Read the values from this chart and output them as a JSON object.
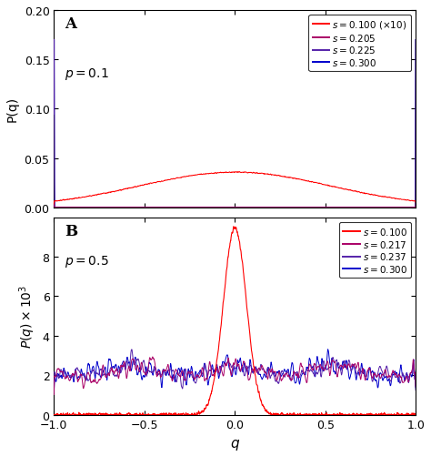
{
  "figsize": [
    4.74,
    5.02
  ],
  "dpi": 100,
  "panel_A": {
    "label": "A",
    "p_label": "p = 0.1",
    "ylabel": "P(q)",
    "ylim": [
      0,
      0.2
    ],
    "yticks": [
      0,
      0.05,
      0.1,
      0.15,
      0.2
    ],
    "xticks": [
      -1,
      -0.5,
      0,
      0.5,
      1
    ],
    "xlim": [
      -1,
      1
    ],
    "legend_colors": [
      "#ff0000",
      "#aa0066",
      "#5522aa",
      "#0000cc"
    ],
    "seed": 42
  },
  "panel_B": {
    "label": "B",
    "p_label": "p = 0.5",
    "ylabel": "P(q) \\times 10^{3}",
    "xlabel": "q",
    "ylim": [
      0,
      10
    ],
    "yticks": [
      0,
      2,
      4,
      6,
      8
    ],
    "xticks": [
      -1,
      -0.5,
      0,
      0.5,
      1
    ],
    "xlim": [
      -1,
      1
    ],
    "legend_colors": [
      "#ff0000",
      "#aa0066",
      "#5522aa",
      "#0000cc"
    ],
    "seed": 123
  },
  "bg_color": "#ffffff"
}
